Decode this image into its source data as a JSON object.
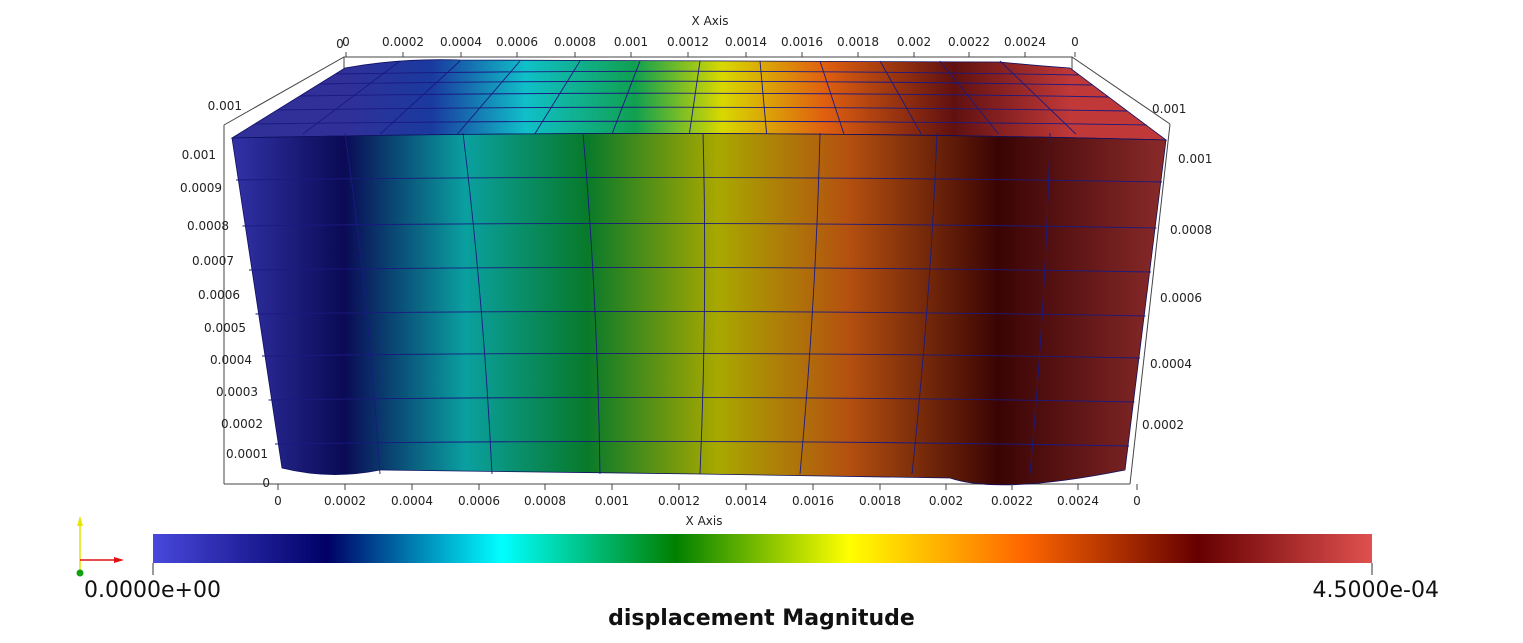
{
  "axes": {
    "top_title": "X Axis",
    "bottom_title": "X Axis",
    "top_x_ticks": [
      "0",
      "0.0002",
      "0.0004",
      "0.0006",
      "0.0008",
      "0.001",
      "0.0012",
      "0.0014",
      "0.0016",
      "0.0018",
      "0.002",
      "0.0022",
      "0.0024",
      "0"
    ],
    "bottom_x_ticks": [
      "0",
      "0.0002",
      "0.0004",
      "0.0006",
      "0.0008",
      "0.001",
      "0.0012",
      "0.0014",
      "0.0016",
      "0.0018",
      "0.002",
      "0.0022",
      "0.0024",
      "0"
    ],
    "left_y_ticks": [
      "0.001",
      "0.0009",
      "0.0008",
      "0.0007",
      "0.0006",
      "0.0005",
      "0.0004",
      "0.0003",
      "0.0002",
      "0.0001",
      "0"
    ],
    "left_top_corner_tick": "0.001",
    "top_left_extra_tick": "0",
    "right_y_ticks": [
      "0.001",
      "0.0008",
      "0.0006",
      "0.0004",
      "0.0002"
    ],
    "right_top_corner_tick": "0.001"
  },
  "colorbar": {
    "title": "displacement Magnitude",
    "min_label": "0.0000e+00",
    "max_label": "4.5000e-04",
    "min_value": 0,
    "max_value": 0.00045,
    "colors": [
      "#4848dc",
      "#000066",
      "#00ffff",
      "#008000",
      "#ffff00",
      "#ff6600",
      "#660000",
      "#e05050"
    ]
  },
  "orientation_axes": {
    "x_color": "#e01010",
    "y_color": "#e6e600",
    "z_color": "#10a010"
  }
}
